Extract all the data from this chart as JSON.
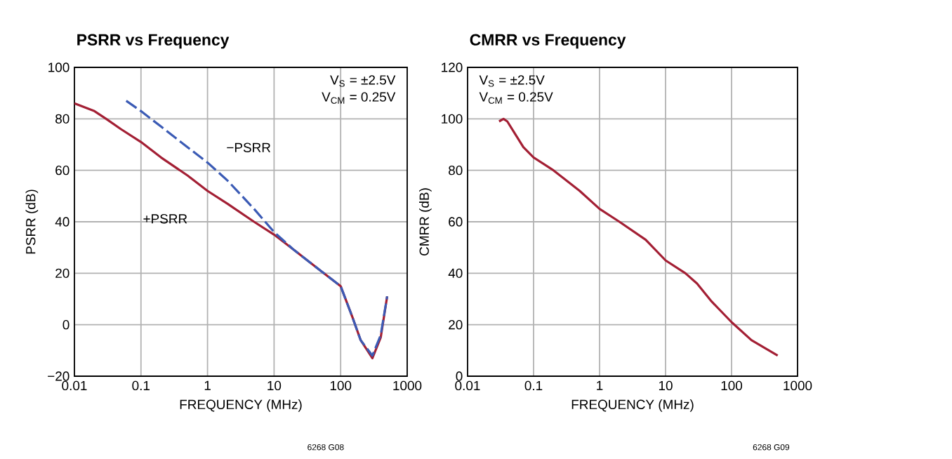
{
  "chart_data": [
    {
      "type": "line",
      "title": "PSRR vs Frequency",
      "xlabel": "FREQUENCY (MHz)",
      "ylabel": "PSRR (dB)",
      "log": "x",
      "grid": true,
      "xlim": [
        0.01,
        1000
      ],
      "xticks": [
        0.01,
        0.1,
        1,
        10,
        100,
        1000
      ],
      "ylim": [
        -20,
        100
      ],
      "yticks": [
        {
          "value": -20,
          "label": "−20"
        },
        0,
        20,
        40,
        60,
        80,
        100
      ],
      "series": [
        {
          "name": "+PSRR",
          "color": "#a31f34",
          "line_style": "solid",
          "x": [
            0.01,
            0.02,
            0.03,
            0.05,
            0.1,
            0.2,
            0.5,
            1,
            2,
            5,
            10,
            20,
            50,
            100,
            150,
            200,
            300,
            400,
            500
          ],
          "values": [
            86,
            83,
            80,
            76,
            71,
            65,
            58,
            52,
            47,
            40,
            35,
            29,
            21,
            15,
            3,
            -6,
            -13,
            -5,
            11
          ]
        },
        {
          "name": "−PSRR",
          "color": "#3b5bb5",
          "line_style": "dashed",
          "x": [
            0.06,
            0.1,
            0.2,
            0.5,
            1,
            2,
            5,
            10,
            20,
            50,
            100,
            150,
            200,
            300,
            400,
            500
          ],
          "values": [
            87,
            83,
            77,
            69,
            63,
            56,
            45,
            36,
            29,
            21,
            15,
            3,
            -6,
            -12,
            -4,
            11
          ]
        }
      ],
      "annotations": [
        "V$_{S}$ = ±2.5V",
        "V$_{CM}$ = 0.25V",
        "6268 G08"
      ]
    },
    {
      "type": "line",
      "title": "CMRR vs Frequency",
      "xlabel": "FREQUENCY (MHz)",
      "ylabel": "CMRR (dB)",
      "log": "x",
      "grid": true,
      "xlim": [
        0.01,
        1000
      ],
      "xticks": [
        0.01,
        0.1,
        1,
        10,
        100,
        1000
      ],
      "ylim": [
        0,
        120
      ],
      "yticks": [
        0,
        20,
        40,
        60,
        80,
        100,
        120
      ],
      "series": [
        {
          "color": "#a31f34",
          "x": [
            0.03,
            0.035,
            0.04,
            0.05,
            0.07,
            0.1,
            0.2,
            0.5,
            1,
            2,
            5,
            10,
            20,
            30,
            50,
            100,
            200,
            500
          ],
          "values": [
            99,
            100,
            99,
            95,
            89,
            85,
            80,
            72,
            65,
            60,
            53,
            45,
            40,
            36,
            29,
            21,
            14,
            8
          ]
        }
      ],
      "annotations": [
        "V$_{S}$ = ±2.5V",
        "V$_{CM}$ = 0.25V",
        "6268 G09"
      ]
    }
  ]
}
